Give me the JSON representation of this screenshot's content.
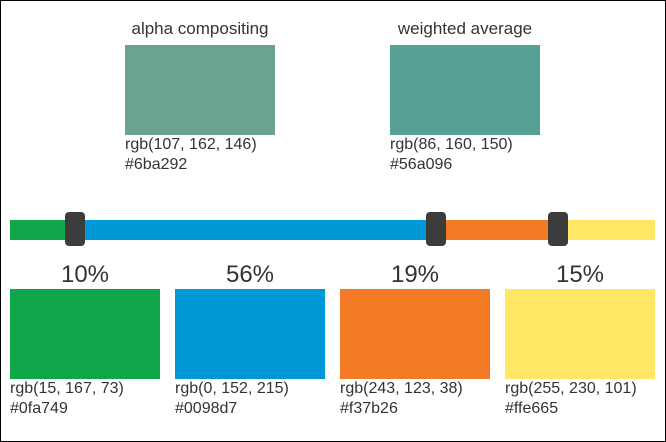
{
  "results": [
    {
      "title": "alpha compositing",
      "color": "#6ba292",
      "rgb": "rgb(107, 162, 146)",
      "hex": "#6ba292"
    },
    {
      "title": "weighted average",
      "color": "#56a096",
      "rgb": "rgb(86, 160, 150)",
      "hex": "#56a096"
    }
  ],
  "sources": [
    {
      "percent": "10%",
      "weight": 10,
      "color": "#0fa749",
      "rgb": "rgb(15, 167, 73)",
      "hex": "#0fa749"
    },
    {
      "percent": "56%",
      "weight": 56,
      "color": "#0098d7",
      "rgb": "rgb(0, 152, 215)",
      "hex": "#0098d7"
    },
    {
      "percent": "19%",
      "weight": 19,
      "color": "#f37b26",
      "rgb": "rgb(243, 123, 38)",
      "hex": "#f37b26"
    },
    {
      "percent": "15%",
      "weight": 15,
      "color": "#ffe665",
      "rgb": "rgb(255, 230, 101)",
      "hex": "#ffe665"
    }
  ],
  "handle_color": "#3c3c3c"
}
